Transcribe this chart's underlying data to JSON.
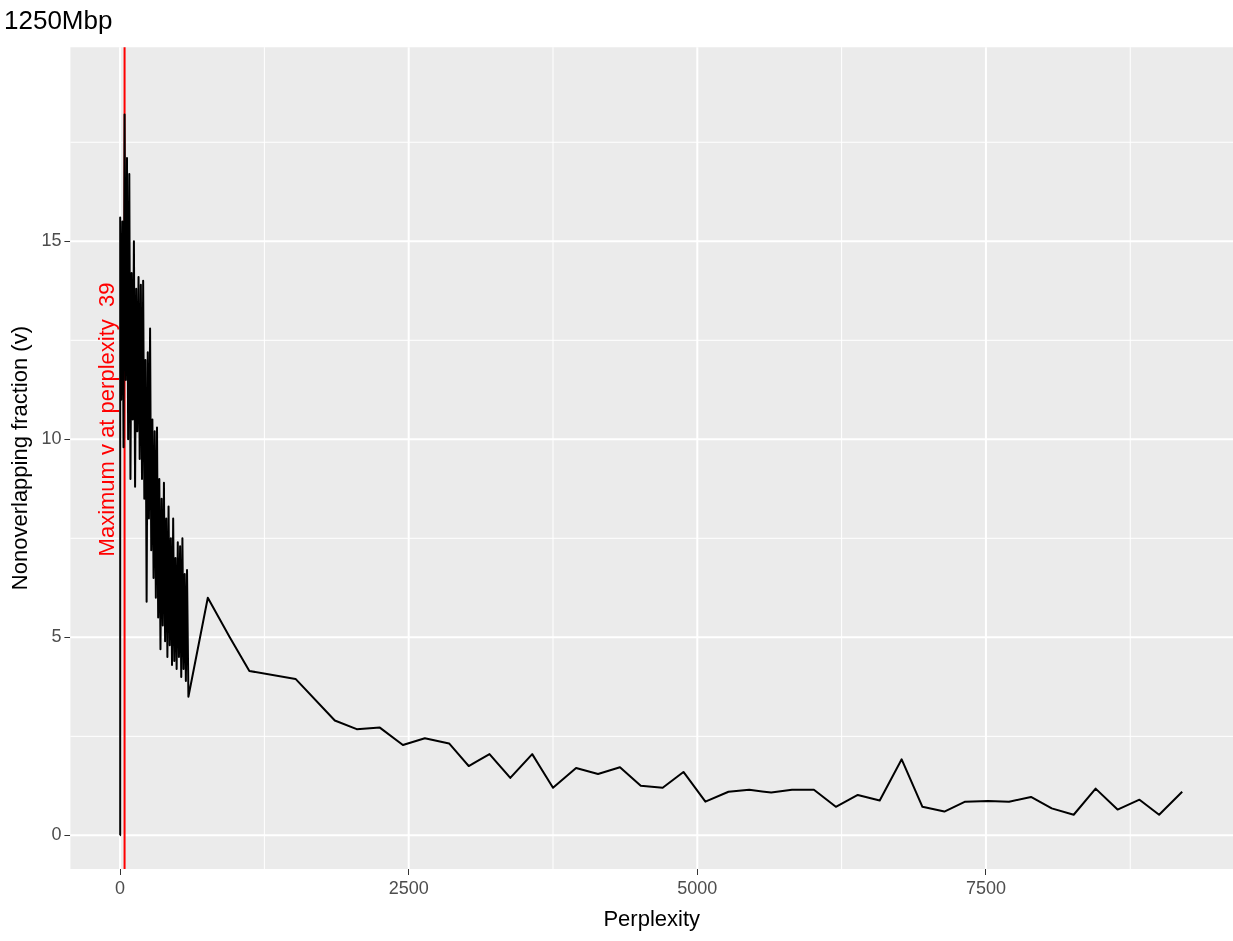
{
  "chart_data": {
    "type": "line",
    "title": "1250Mbp",
    "xlabel": "Perplexity",
    "ylabel": "Nonoverlapping fraction (v)",
    "xlim": [
      -430,
      9640
    ],
    "xticks": [
      0,
      2500,
      5000,
      7500
    ],
    "ylim": [
      -0.85,
      19.9
    ],
    "yticks": [
      0,
      5,
      10,
      15
    ],
    "grid": true,
    "legend": false,
    "marker": "none",
    "line_style": "solid",
    "ref_lines": [
      {
        "axis": "x",
        "value": 39,
        "label": "Maximum v at perplexity  39",
        "color": "#ff0000"
      }
    ],
    "series": [
      {
        "color": "#000000",
        "x": [
          0,
          1,
          10,
          20,
          30,
          39,
          50,
          60,
          70,
          80,
          90,
          100,
          110,
          120,
          130,
          140,
          150,
          160,
          170,
          180,
          190,
          200,
          210,
          220,
          230,
          240,
          250,
          260,
          270,
          280,
          290,
          300,
          310,
          320,
          330,
          340,
          350,
          360,
          370,
          380,
          390,
          400,
          410,
          420,
          430,
          440,
          450,
          460,
          470,
          480,
          490,
          500,
          510,
          520,
          530,
          540,
          550,
          560,
          570,
          580,
          592,
          760,
          950,
          1120,
          1520,
          1860,
          2050,
          2250,
          2450,
          2640,
          2850,
          3020,
          3200,
          3380,
          3570,
          3750,
          3950,
          4140,
          4330,
          4510,
          4700,
          4880,
          5070,
          5270,
          5450,
          5640,
          5820,
          6010,
          6200,
          6390,
          6580,
          6770,
          6950,
          7140,
          7320,
          7520,
          7700,
          7890,
          8070,
          8260,
          8450,
          8640,
          8830,
          9000,
          9200
        ],
        "values": [
          0,
          15.6,
          11.0,
          15.5,
          9.8,
          18.2,
          11.5,
          17.1,
          10.0,
          16.7,
          9.0,
          14.2,
          10.5,
          15.0,
          8.8,
          13.8,
          10.2,
          14.1,
          9.5,
          13.9,
          9.0,
          14.0,
          8.5,
          12.0,
          5.9,
          12.2,
          8.0,
          12.8,
          7.2,
          10.5,
          6.5,
          10.2,
          6.0,
          10.3,
          5.5,
          9.0,
          4.7,
          8.5,
          5.3,
          8.9,
          4.9,
          8.0,
          4.5,
          8.3,
          4.8,
          7.5,
          4.3,
          8.0,
          4.4,
          7.0,
          4.2,
          7.4,
          4.5,
          7.3,
          4.0,
          7.5,
          4.2,
          6.6,
          3.9,
          6.7,
          3.5,
          6.0,
          5.0,
          4.15,
          3.95,
          2.9,
          2.68,
          2.72,
          2.28,
          2.45,
          2.32,
          1.75,
          2.05,
          1.45,
          2.05,
          1.2,
          1.7,
          1.55,
          1.72,
          1.25,
          1.2,
          1.6,
          0.85,
          1.1,
          1.15,
          1.08,
          1.15,
          1.15,
          0.72,
          1.02,
          0.88,
          1.92,
          0.72,
          0.6,
          0.85,
          0.87,
          0.85,
          0.97,
          0.68,
          0.52,
          1.18,
          0.65,
          0.9,
          0.52,
          1.1
        ]
      }
    ]
  }
}
